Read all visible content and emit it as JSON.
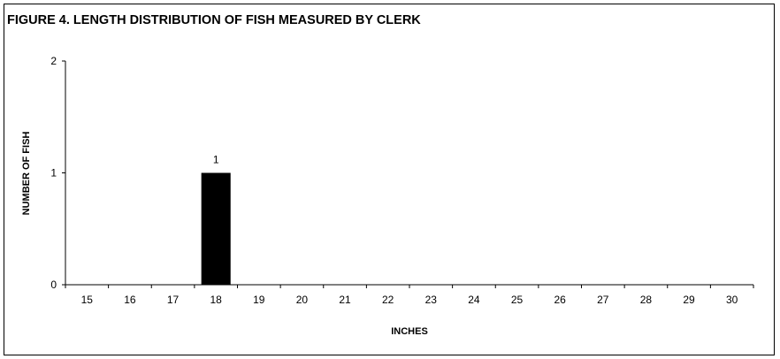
{
  "chart_data": {
    "type": "bar",
    "title": "FIGURE 4.  LENGTH DISTRIBUTION OF FISH MEASURED BY CLERK",
    "xlabel": "INCHES",
    "ylabel": "NUMBER OF FISH",
    "categories": [
      "15",
      "16",
      "17",
      "18",
      "19",
      "20",
      "21",
      "22",
      "23",
      "24",
      "25",
      "26",
      "27",
      "28",
      "29",
      "30"
    ],
    "values": [
      0,
      0,
      0,
      1,
      0,
      0,
      0,
      0,
      0,
      0,
      0,
      0,
      0,
      0,
      0,
      0
    ],
    "data_labels": [
      "",
      "",
      "",
      "1",
      "",
      "",
      "",
      "",
      "",
      "",
      "",
      "",
      "",
      "",
      "",
      ""
    ],
    "ylim": [
      0,
      2
    ],
    "yticks": [
      "0",
      "1",
      "2"
    ],
    "grid": false,
    "legend": "none",
    "bar_color": "#000000"
  }
}
